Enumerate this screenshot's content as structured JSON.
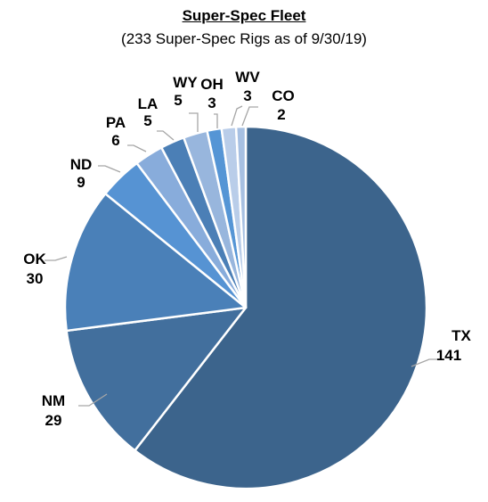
{
  "chart_data": {
    "type": "pie",
    "title": "Super-Spec Fleet",
    "subtitle": "(233 Super-Spec Rigs as of 9/30/19)",
    "slices": [
      {
        "label": "TX",
        "value": 141,
        "color": "#3c648c"
      },
      {
        "label": "NM",
        "value": 29,
        "color": "#426f9d"
      },
      {
        "label": "OK",
        "value": 30,
        "color": "#4a80b8"
      },
      {
        "label": "ND",
        "value": 9,
        "color": "#5693d3"
      },
      {
        "label": "PA",
        "value": 6,
        "color": "#88acdb"
      },
      {
        "label": "LA",
        "value": 5,
        "color": "#4b7fb6"
      },
      {
        "label": "WY",
        "value": 5,
        "color": "#98b6dd"
      },
      {
        "label": "OH",
        "value": 3,
        "color": "#5595d5"
      },
      {
        "label": "WV",
        "value": 3,
        "color": "#b9cde9"
      },
      {
        "label": "CO",
        "value": 2,
        "color": "#a7c0e2"
      }
    ],
    "start_angle": "12 o'clock",
    "direction": "clockwise",
    "legend": "none",
    "labels": "outside with leader lines"
  }
}
